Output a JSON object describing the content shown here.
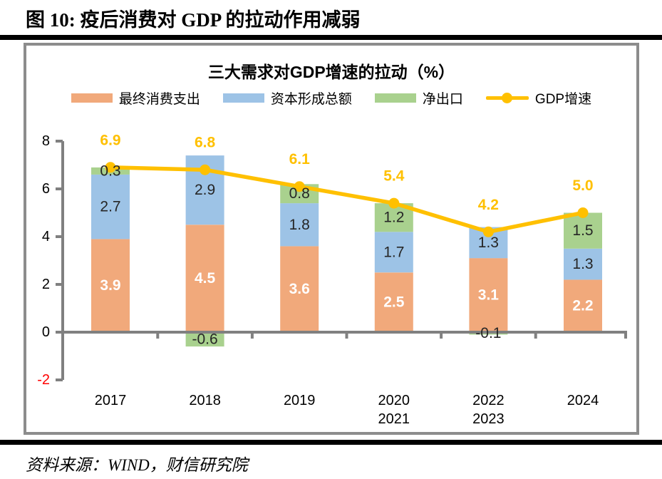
{
  "page": {
    "figure_title": "图 10:  疫后消费对 GDP 的拉动作用减弱",
    "source": "资料来源：WIND，财信研究院"
  },
  "chart_data": {
    "type": "bar",
    "stacked": true,
    "title": "三大需求对GDP增速的拉动（%）",
    "categories": [
      "2017",
      "2018",
      "2019",
      "2020\n2021",
      "2022\n2023",
      "2024"
    ],
    "series": [
      {
        "name": "最终消费支出",
        "color": "#F1A97B",
        "label_color": "#FFFFFF",
        "label_bold": true,
        "values": [
          3.9,
          4.5,
          3.6,
          2.5,
          3.1,
          2.2
        ]
      },
      {
        "name": "资本形成总额",
        "color": "#9DC3E6",
        "label_color": "#262626",
        "label_bold": false,
        "values": [
          2.7,
          2.9,
          1.8,
          1.7,
          1.3,
          1.3
        ]
      },
      {
        "name": "净出口",
        "color": "#A9D18E",
        "label_color": "#262626",
        "label_bold": false,
        "values": [
          0.3,
          -0.6,
          0.8,
          1.2,
          -0.1,
          1.5
        ]
      }
    ],
    "line_series": {
      "name": "GDP增速",
      "color": "#FFC000",
      "values": [
        6.9,
        6.8,
        6.1,
        5.4,
        4.2,
        5.0
      ]
    },
    "ylim": [
      -2,
      8
    ],
    "yticks": [
      8,
      6,
      4,
      2,
      0,
      -2
    ],
    "ytick_color_default": "#000000",
    "ytick_color_negative": "#FF0000",
    "axis_color": "#808080",
    "grid": false,
    "legend_position": "top"
  }
}
